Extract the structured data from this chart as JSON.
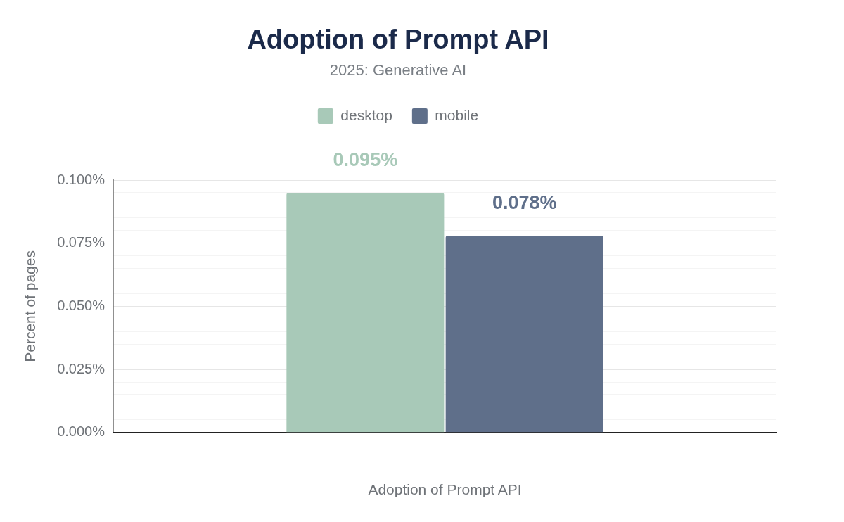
{
  "chart_data": {
    "type": "bar",
    "title": "Adoption of Prompt API",
    "subtitle": "2025: Generative AI",
    "xlabel": "Adoption of Prompt API",
    "ylabel": "Percent of pages",
    "categories": [
      null
    ],
    "series": [
      {
        "name": "desktop",
        "color": "#a8c9b8",
        "values": [
          0.095
        ]
      },
      {
        "name": "mobile",
        "color": "#5f6f8a",
        "values": [
          0.078
        ]
      }
    ],
    "ylim": [
      0,
      0.1
    ],
    "yticks": [
      {
        "value": 0,
        "label": "0.000%"
      },
      {
        "value": 0.005,
        "label": null
      },
      {
        "value": 0.01,
        "label": null
      },
      {
        "value": 0.015,
        "label": null
      },
      {
        "value": 0.02,
        "label": null
      },
      {
        "value": 0.025,
        "label": "0.025%"
      },
      {
        "value": 0.03,
        "label": null
      },
      {
        "value": 0.035,
        "label": null
      },
      {
        "value": 0.04,
        "label": null
      },
      {
        "value": 0.045,
        "label": null
      },
      {
        "value": 0.05,
        "label": "0.050%"
      },
      {
        "value": 0.055,
        "label": null
      },
      {
        "value": 0.06,
        "label": null
      },
      {
        "value": 0.065,
        "label": null
      },
      {
        "value": 0.07,
        "label": null
      },
      {
        "value": 0.075,
        "label": "0.075%"
      },
      {
        "value": 0.08,
        "label": null
      },
      {
        "value": 0.085,
        "label": null
      },
      {
        "value": 0.09,
        "label": null
      },
      {
        "value": 0.095,
        "label": null
      },
      {
        "value": 0.1,
        "label": "0.100%"
      }
    ],
    "value_labels": [
      [
        "0.095%"
      ],
      [
        "0.078%"
      ]
    ],
    "grid": "y",
    "legend": "top"
  }
}
